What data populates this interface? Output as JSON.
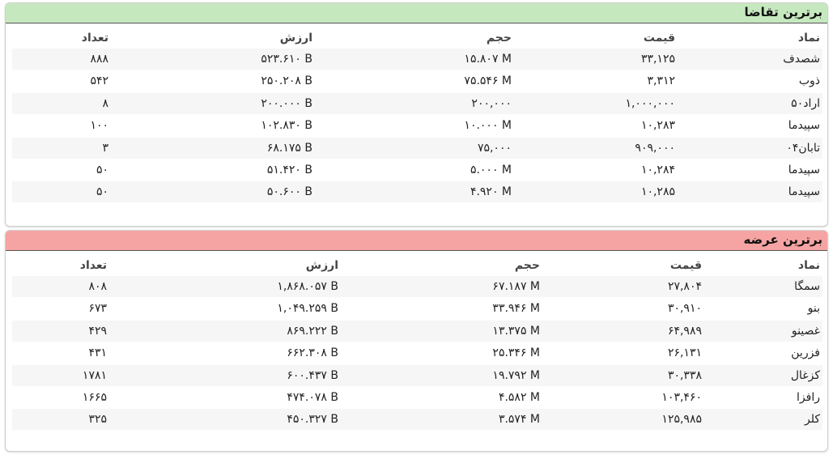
{
  "panels": [
    {
      "title": "برترین تقاضا",
      "headers": [
        "نماد",
        "قیمت",
        "حجم",
        "ارزش",
        "تعداد"
      ],
      "rows": [
        [
          "شصدف",
          "۳۳,۱۲۵",
          "۱۵.۸۰۷ M",
          "۵۲۳.۶۱۰ B",
          "۸۸۸"
        ],
        [
          "ذوب",
          "۳,۳۱۲",
          "۷۵.۵۴۶ M",
          "۲۵۰.۲۰۸ B",
          "۵۴۲"
        ],
        [
          "اراد۵۰",
          "۱,۰۰۰,۰۰۰",
          "۲۰۰,۰۰۰",
          "۲۰۰.۰۰۰ B",
          "۸"
        ],
        [
          "سپیدما",
          "۱۰,۲۸۳",
          "۱۰.۰۰۰ M",
          "۱۰۲.۸۳۰ B",
          "۱۰۰"
        ],
        [
          "تابان۰۴",
          "۹۰۹,۰۰۰",
          "۷۵,۰۰۰",
          "۶۸.۱۷۵ B",
          "۳"
        ],
        [
          "سپیدما",
          "۱۰,۲۸۴",
          "۵.۰۰۰ M",
          "۵۱.۴۲۰ B",
          "۵۰"
        ],
        [
          "سپیدما",
          "۱۰,۲۸۵",
          "۴.۹۲۰ M",
          "۵۰.۶۰۰ B",
          "۵۰"
        ]
      ]
    },
    {
      "title": "برترین عرضه",
      "headers": [
        "نماد",
        "قیمت",
        "حجم",
        "ارزش",
        "تعداد"
      ],
      "rows": [
        [
          "سمگا",
          "۲۷,۸۰۴",
          "۶۷.۱۸۷ M",
          "۱,۸۶۸.۰۵۷ B",
          "۸۰۸"
        ],
        [
          "بنو",
          "۳۰,۹۱۰",
          "۳۳.۹۴۶ M",
          "۱,۰۴۹.۲۵۹ B",
          "۶۷۳"
        ],
        [
          "غصینو",
          "۶۴,۹۸۹",
          "۱۳.۳۷۵ M",
          "۸۶۹.۲۲۲ B",
          "۴۲۹"
        ],
        [
          "فزرین",
          "۲۶,۱۳۱",
          "۲۵.۳۴۶ M",
          "۶۶۲.۳۰۸ B",
          "۴۳۱"
        ],
        [
          "کزغال",
          "۳۰,۳۳۸",
          "۱۹.۷۹۲ M",
          "۶۰۰.۴۳۷ B",
          "۱۷۸۱"
        ],
        [
          "رافزا",
          "۱۰۳,۴۶۰",
          "۴.۵۸۲ M",
          "۴۷۴.۰۷۸ B",
          "۱۶۶۵"
        ],
        [
          "کلر",
          "۱۲۵,۹۸۵",
          "۳.۵۷۴ M",
          "۴۵۰.۳۲۷ B",
          "۳۲۵"
        ]
      ]
    }
  ]
}
